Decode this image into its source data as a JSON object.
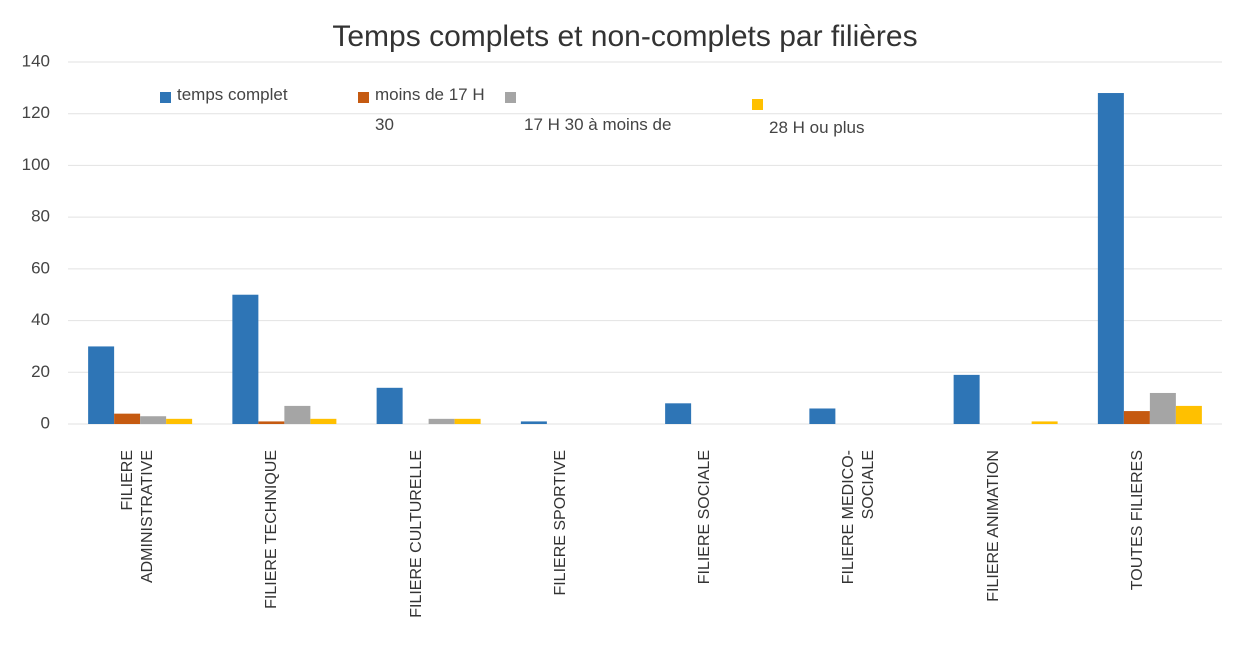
{
  "chart_data": {
    "type": "bar",
    "title": "Temps complets et non-complets par filières",
    "categories": [
      "FILIERE ADMINISTRATIVE",
      "FILIERE TECHNIQUE",
      "FILIERE CULTURELLE",
      "FILIERE SPORTIVE",
      "FILIERE SOCIALE",
      "FILIERE MEDICO-SOCIALE",
      "FILIERE ANIMATION",
      "TOUTES FILIERES"
    ],
    "series": [
      {
        "name": "temps complet",
        "color": "#2e75b6",
        "values": [
          30,
          50,
          14,
          1,
          8,
          6,
          19,
          128
        ]
      },
      {
        "name": "moins de 17 H 30",
        "color": "#c55a11",
        "values": [
          4,
          1,
          0,
          0,
          0,
          0,
          0,
          5
        ]
      },
      {
        "name": "17 H 30 à moins de",
        "color": "#a5a5a5",
        "values": [
          3,
          7,
          2,
          0,
          0,
          0,
          0,
          12
        ]
      },
      {
        "name": "28 H ou plus",
        "color": "#ffc000",
        "values": [
          2,
          2,
          2,
          0,
          0,
          0,
          1,
          7
        ]
      }
    ],
    "ylim": [
      0,
      140
    ],
    "yticks": [
      0,
      20,
      40,
      60,
      80,
      100,
      120,
      140
    ],
    "grid": true
  }
}
